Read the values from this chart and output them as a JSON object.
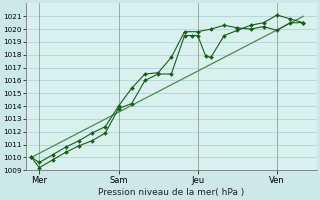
{
  "background_color": "#cce8e8",
  "plot_bg": "#d8f0ee",
  "grid_color": "#aacece",
  "line_dark": "#1a5c1a",
  "line_light": "#4a8a4a",
  "xlabel_text": "Pression niveau de la mer( hPa )",
  "ymin": 1009,
  "ymax": 1022,
  "yticks": [
    1009,
    1010,
    1011,
    1012,
    1013,
    1014,
    1015,
    1016,
    1017,
    1018,
    1019,
    1020,
    1021
  ],
  "day_positions": [
    0.5,
    3.5,
    6.5,
    9.5
  ],
  "day_labels": [
    "Mer",
    "Sam",
    "Jeu",
    "Ven"
  ],
  "day_vlines": [
    0.5,
    3.5,
    6.5,
    9.5
  ],
  "xmin": 0,
  "xmax": 11,
  "series1_x": [
    0.2,
    0.5,
    1.0,
    1.5,
    2.0,
    2.5,
    3.0,
    3.5,
    4.0,
    4.5,
    5.0,
    5.5,
    6.0,
    6.3,
    6.5,
    6.8,
    7.0,
    7.5,
    8.0,
    8.5,
    9.0,
    9.5,
    10.0,
    10.5
  ],
  "series1_y": [
    1010.0,
    1009.2,
    1009.8,
    1010.4,
    1010.9,
    1011.3,
    1011.9,
    1013.8,
    1014.2,
    1016.0,
    1016.5,
    1016.5,
    1019.5,
    1019.5,
    1019.5,
    1017.9,
    1017.8,
    1019.5,
    1019.9,
    1020.3,
    1020.5,
    1021.1,
    1020.8,
    1020.5
  ],
  "series2_x": [
    0.2,
    0.5,
    1.0,
    1.5,
    2.0,
    2.5,
    3.0,
    3.5,
    4.0,
    4.5,
    5.0,
    5.5,
    6.0,
    6.5,
    7.0,
    7.5,
    8.0,
    8.5,
    9.0,
    9.5,
    10.0,
    10.5
  ],
  "series2_y": [
    1010.0,
    1009.6,
    1010.2,
    1010.8,
    1011.3,
    1011.9,
    1012.4,
    1014.0,
    1015.4,
    1016.5,
    1016.6,
    1017.8,
    1019.8,
    1019.8,
    1020.0,
    1020.3,
    1020.1,
    1020.0,
    1020.2,
    1019.9,
    1020.5,
    1020.5
  ],
  "trend_x": [
    0.2,
    10.5
  ],
  "trend_y": [
    1010.0,
    1021.0
  ]
}
